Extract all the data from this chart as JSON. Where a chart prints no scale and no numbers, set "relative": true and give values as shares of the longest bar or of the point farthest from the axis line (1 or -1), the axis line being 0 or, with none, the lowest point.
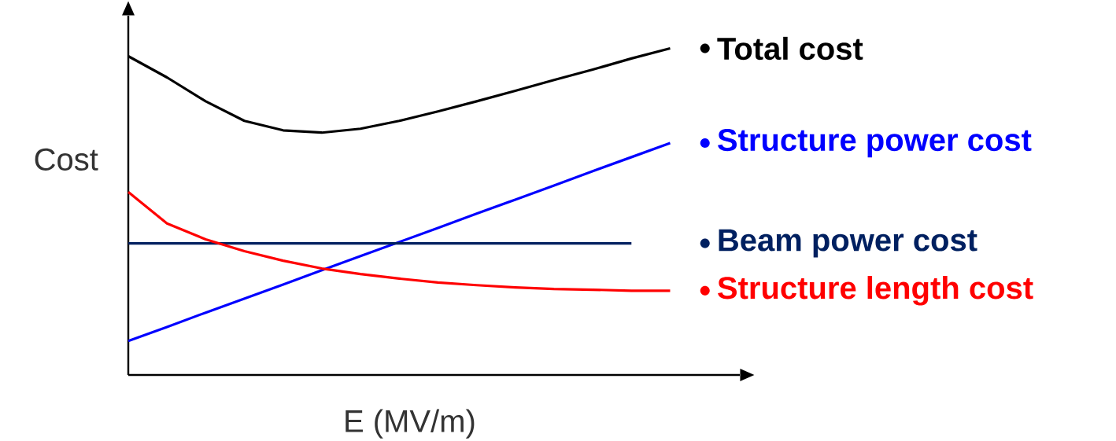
{
  "chart_data": {
    "type": "line",
    "relative": true,
    "xlabel": "E (MV/m)",
    "ylabel": "Cost",
    "legend": "right",
    "marker": "none",
    "line_style": "solid",
    "tick_labels": false,
    "categories": [
      null,
      null,
      null,
      null,
      null,
      null,
      null,
      null,
      null,
      null,
      null,
      null,
      null,
      null,
      null
    ],
    "series": [
      {
        "name": "Total cost",
        "color": "#000000",
        "values": [
          0.976,
          0.911,
          0.838,
          0.778,
          0.749,
          0.742,
          0.754,
          0.778,
          0.807,
          0.838,
          0.87,
          0.903,
          0.935,
          0.969,
          1.0
        ]
      },
      {
        "name": "Structure power cost",
        "color": "#0000ff",
        "values": [
          0.104,
          0.147,
          0.191,
          0.234,
          0.277,
          0.321,
          0.364,
          0.407,
          0.45,
          0.494,
          0.537,
          0.58,
          0.624,
          0.667,
          0.71
        ]
      },
      {
        "name": "Beam power cost",
        "color": "#002060",
        "values": [
          0.403,
          0.403,
          0.403,
          0.403,
          0.403,
          0.403,
          0.403,
          0.403,
          0.403,
          0.403,
          0.403,
          0.403,
          0.403,
          0.403,
          null
        ]
      },
      {
        "name": "Structure length cost",
        "color": "#ff0000",
        "values": [
          0.56,
          0.464,
          0.415,
          0.379,
          0.35,
          0.326,
          0.309,
          0.295,
          0.283,
          0.275,
          0.268,
          0.263,
          0.261,
          0.258,
          0.258
        ]
      }
    ]
  }
}
